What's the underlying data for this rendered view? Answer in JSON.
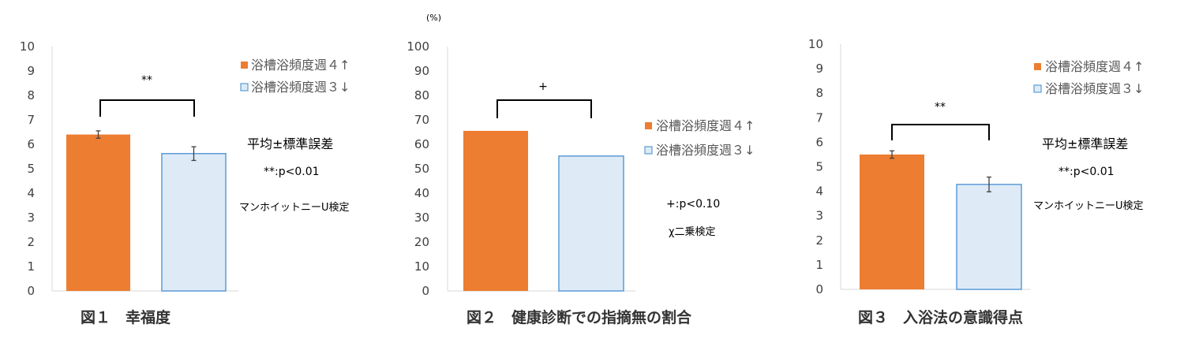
{
  "colors": {
    "series1_fill": "#ed7d31",
    "series2_fill": "#deebf7",
    "series2_stroke": "#5b9bd5",
    "axis": "#d9d9d9",
    "bracket": "#000000"
  },
  "legend": {
    "series1": "浴槽浴頻度週４↑",
    "series2": "浴槽浴頻度週３↓"
  },
  "chart_data": [
    {
      "type": "bar",
      "title": "図１　幸福度",
      "ylim": [
        0,
        10
      ],
      "yticks": [
        "0",
        "1",
        "2",
        "3",
        "4",
        "5",
        "6",
        "7",
        "8",
        "9",
        "10"
      ],
      "ytick_values": [
        0,
        1,
        2,
        3,
        4,
        5,
        6,
        7,
        8,
        9,
        10
      ],
      "series": [
        {
          "name": "浴槽浴頻度週４↑",
          "value": 6.4,
          "error": 0.15
        },
        {
          "name": "浴槽浴頻度週３↓",
          "value": 5.62,
          "error": 0.28
        }
      ],
      "significance": "**",
      "notes": [
        "平均±標準誤差",
        "**:p<0.01",
        "マンホイットニーU検定"
      ],
      "legend_position": "top-right"
    },
    {
      "type": "bar",
      "title": "図２　健康診断での指摘無の割合",
      "unit_label": "(%)",
      "ylim": [
        0,
        100
      ],
      "yticks": [
        "0",
        "10",
        "20",
        "30",
        "40",
        "50",
        "60",
        "70",
        "80",
        "90",
        "100"
      ],
      "ytick_values": [
        0,
        10,
        20,
        30,
        40,
        50,
        60,
        70,
        80,
        90,
        100
      ],
      "series": [
        {
          "name": "浴槽浴頻度週４↑",
          "value": 65.5
        },
        {
          "name": "浴槽浴頻度週３↓",
          "value": 55.2
        }
      ],
      "significance": "+",
      "notes": [
        "+:p<0.10",
        "χ二乗検定"
      ],
      "legend_position": "right"
    },
    {
      "type": "bar",
      "title": "図３　入浴法の意識得点",
      "ylim": [
        0,
        10
      ],
      "yticks": [
        "0",
        "1",
        "2",
        "3",
        "4",
        "5",
        "6",
        "7",
        "8",
        "9",
        "10"
      ],
      "ytick_values": [
        0,
        1,
        2,
        3,
        4,
        5,
        6,
        7,
        8,
        9,
        10
      ],
      "series": [
        {
          "name": "浴槽浴頻度週４↑",
          "value": 5.5,
          "error": 0.15
        },
        {
          "name": "浴槽浴頻度週３↓",
          "value": 4.28,
          "error": 0.3
        }
      ],
      "significance": "**",
      "notes": [
        "平均±標準誤差",
        "**:p<0.01",
        "マンホイットニーU検定"
      ],
      "legend_position": "top-right"
    }
  ]
}
